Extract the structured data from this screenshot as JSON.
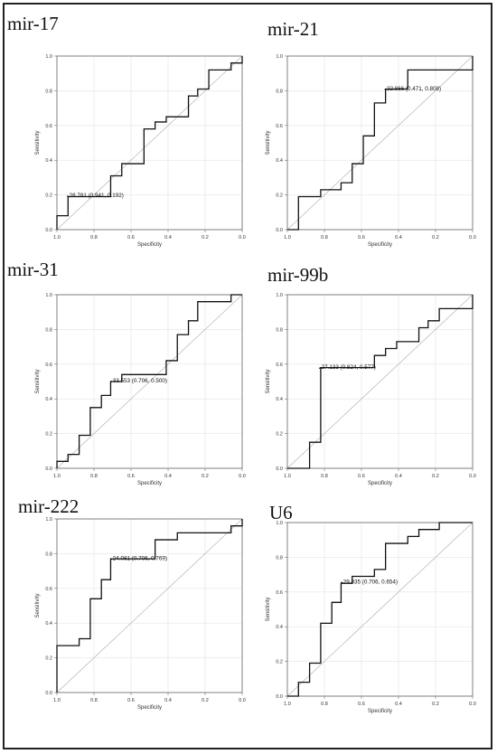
{
  "figure": {
    "panel_titles": [
      "mir-17",
      "mir-21",
      "mir-31",
      "mir-99b",
      "mir-222",
      "U6"
    ]
  },
  "chart_data": [
    {
      "type": "line",
      "title": "mir-17",
      "xlabel": "Specificity",
      "ylabel": "Sensitivity",
      "xlim": [
        1.0,
        0.0
      ],
      "ylim": [
        0.0,
        1.0
      ],
      "x_reversed": true,
      "grid": true,
      "diagonal_reference": true,
      "x_ticks": [
        "1.0",
        "0.8",
        "0.6",
        "0.4",
        "0.2",
        "0.0"
      ],
      "y_ticks": [
        "0.0",
        "0.2",
        "0.4",
        "0.6",
        "0.8",
        "1.0"
      ],
      "series": [
        {
          "specificity": [
            1.0,
            1.0,
            0.94,
            0.94,
            0.71,
            0.71,
            0.65,
            0.65,
            0.53,
            0.53,
            0.47,
            0.47,
            0.41,
            0.41,
            0.29,
            0.29,
            0.24,
            0.24,
            0.18,
            0.18,
            0.06,
            0.06,
            0.0,
            0.0
          ],
          "sensitivity": [
            0.0,
            0.08,
            0.08,
            0.19,
            0.19,
            0.31,
            0.31,
            0.38,
            0.38,
            0.58,
            0.58,
            0.62,
            0.62,
            0.65,
            0.65,
            0.77,
            0.77,
            0.81,
            0.81,
            0.92,
            0.92,
            0.96,
            0.96,
            1.0
          ]
        }
      ],
      "annotation": {
        "text": "28.781 (0.941, 0.192)",
        "specificity": 0.941,
        "sensitivity": 0.192
      }
    },
    {
      "type": "line",
      "title": "mir-21",
      "xlabel": "Specificity",
      "ylabel": "Sensitivity",
      "xlim": [
        1.0,
        0.0
      ],
      "ylim": [
        0.0,
        1.0
      ],
      "x_reversed": true,
      "grid": true,
      "diagonal_reference": true,
      "x_ticks": [
        "1.0",
        "0.8",
        "0.6",
        "0.4",
        "0.2",
        "0.0"
      ],
      "y_ticks": [
        "0.0",
        "0.2",
        "0.4",
        "0.6",
        "0.8",
        "1.0"
      ],
      "series": [
        {
          "specificity": [
            1.0,
            0.94,
            0.94,
            0.82,
            0.82,
            0.71,
            0.71,
            0.65,
            0.65,
            0.59,
            0.59,
            0.53,
            0.53,
            0.47,
            0.47,
            0.35,
            0.35,
            0.0,
            0.0
          ],
          "sensitivity": [
            0.0,
            0.0,
            0.19,
            0.19,
            0.23,
            0.23,
            0.27,
            0.27,
            0.38,
            0.38,
            0.54,
            0.54,
            0.73,
            0.73,
            0.81,
            0.81,
            0.92,
            0.92,
            1.0
          ]
        }
      ],
      "annotation": {
        "text": "22.866 (0.471, 0.808)",
        "specificity": 0.471,
        "sensitivity": 0.808
      }
    },
    {
      "type": "line",
      "title": "mir-31",
      "xlabel": "Specificity",
      "ylabel": "Sensitivity",
      "xlim": [
        1.0,
        0.0
      ],
      "ylim": [
        0.0,
        1.0
      ],
      "x_reversed": true,
      "grid": true,
      "diagonal_reference": true,
      "x_ticks": [
        "1.0",
        "0.8",
        "0.6",
        "0.4",
        "0.2",
        "0.0"
      ],
      "y_ticks": [
        "0.0",
        "0.2",
        "0.4",
        "0.6",
        "0.8",
        "1.0"
      ],
      "series": [
        {
          "specificity": [
            1.0,
            1.0,
            0.94,
            0.94,
            0.88,
            0.88,
            0.82,
            0.82,
            0.76,
            0.76,
            0.71,
            0.71,
            0.65,
            0.65,
            0.41,
            0.41,
            0.35,
            0.35,
            0.29,
            0.29,
            0.24,
            0.24,
            0.06,
            0.06,
            0.0
          ],
          "sensitivity": [
            0.0,
            0.04,
            0.04,
            0.08,
            0.08,
            0.19,
            0.19,
            0.35,
            0.35,
            0.42,
            0.42,
            0.5,
            0.5,
            0.54,
            0.54,
            0.62,
            0.62,
            0.77,
            0.77,
            0.85,
            0.85,
            0.96,
            0.96,
            1.0,
            1.0
          ]
        }
      ],
      "annotation": {
        "text": "33.553 (0.706, 0.500)",
        "specificity": 0.706,
        "sensitivity": 0.5
      }
    },
    {
      "type": "line",
      "title": "mir-99b",
      "xlabel": "Specificity",
      "ylabel": "Sensitivity",
      "xlim": [
        1.0,
        0.0
      ],
      "ylim": [
        0.0,
        1.0
      ],
      "x_reversed": true,
      "grid": true,
      "diagonal_reference": true,
      "x_ticks": [
        "1.0",
        "0.8",
        "0.6",
        "0.4",
        "0.2",
        "0.0"
      ],
      "y_ticks": [
        "0.0",
        "0.2",
        "0.4",
        "0.6",
        "0.8",
        "1.0"
      ],
      "series": [
        {
          "specificity": [
            1.0,
            0.88,
            0.88,
            0.82,
            0.82,
            0.53,
            0.53,
            0.47,
            0.47,
            0.41,
            0.41,
            0.29,
            0.29,
            0.24,
            0.24,
            0.18,
            0.18,
            0.0,
            0.0
          ],
          "sensitivity": [
            0.0,
            0.0,
            0.15,
            0.15,
            0.58,
            0.58,
            0.65,
            0.65,
            0.69,
            0.69,
            0.73,
            0.73,
            0.81,
            0.81,
            0.85,
            0.85,
            0.92,
            0.92,
            1.0
          ]
        }
      ],
      "annotation": {
        "text": "27.133 (0.824, 0.577)",
        "specificity": 0.824,
        "sensitivity": 0.577
      }
    },
    {
      "type": "line",
      "title": "mir-222",
      "xlabel": "Specificity",
      "ylabel": "Sensitivity",
      "xlim": [
        1.0,
        0.0
      ],
      "ylim": [
        0.0,
        1.0
      ],
      "x_reversed": true,
      "grid": true,
      "diagonal_reference": true,
      "x_ticks": [
        "1.0",
        "0.8",
        "0.6",
        "0.4",
        "0.2",
        "0.0"
      ],
      "y_ticks": [
        "0.0",
        "0.2",
        "0.4",
        "0.6",
        "0.8",
        "1.0"
      ],
      "series": [
        {
          "specificity": [
            1.0,
            1.0,
            0.88,
            0.88,
            0.82,
            0.82,
            0.76,
            0.76,
            0.71,
            0.71,
            0.47,
            0.47,
            0.35,
            0.35,
            0.06,
            0.06,
            0.0,
            0.0
          ],
          "sensitivity": [
            0.0,
            0.27,
            0.27,
            0.31,
            0.31,
            0.54,
            0.54,
            0.65,
            0.65,
            0.77,
            0.77,
            0.88,
            0.88,
            0.92,
            0.92,
            0.96,
            0.96,
            1.0
          ]
        }
      ],
      "annotation": {
        "text": "24.081 (0.706, 0.769)",
        "specificity": 0.706,
        "sensitivity": 0.769
      }
    },
    {
      "type": "line",
      "title": "U6",
      "xlabel": "Specificity",
      "ylabel": "Sensitivity",
      "xlim": [
        1.0,
        0.0
      ],
      "ylim": [
        0.0,
        1.0
      ],
      "x_reversed": true,
      "grid": true,
      "diagonal_reference": true,
      "x_ticks": [
        "1.0",
        "0.8",
        "0.6",
        "0.4",
        "0.2",
        "0.0"
      ],
      "y_ticks": [
        "0.0",
        "0.2",
        "0.4",
        "0.6",
        "0.8",
        "1.0"
      ],
      "series": [
        {
          "specificity": [
            1.0,
            0.94,
            0.94,
            0.88,
            0.88,
            0.82,
            0.82,
            0.76,
            0.76,
            0.71,
            0.71,
            0.65,
            0.65,
            0.53,
            0.53,
            0.47,
            0.47,
            0.35,
            0.35,
            0.29,
            0.29,
            0.18,
            0.18,
            0.0
          ],
          "sensitivity": [
            0.0,
            0.0,
            0.08,
            0.08,
            0.19,
            0.19,
            0.42,
            0.42,
            0.54,
            0.54,
            0.65,
            0.65,
            0.69,
            0.69,
            0.73,
            0.73,
            0.88,
            0.88,
            0.92,
            0.92,
            0.96,
            0.96,
            1.0,
            1.0
          ]
        }
      ],
      "annotation": {
        "text": "29.835 (0.706, 0.654)",
        "specificity": 0.706,
        "sensitivity": 0.654
      }
    }
  ]
}
